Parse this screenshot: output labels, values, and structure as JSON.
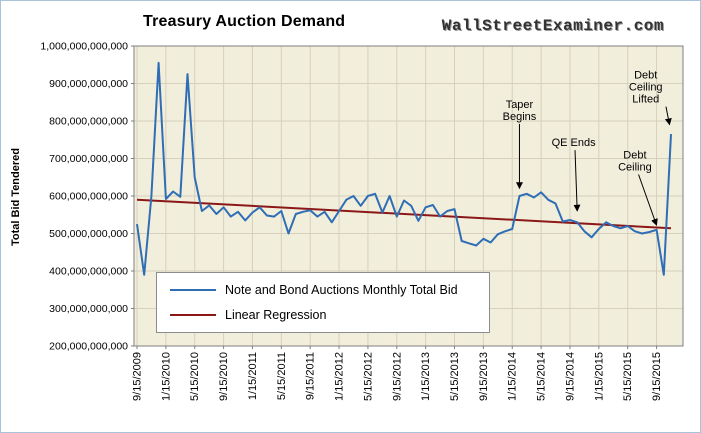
{
  "header": {
    "title": "Treasury Auction Demand",
    "watermark": "WallStreetExaminer.com"
  },
  "chart_data": {
    "type": "line",
    "title": "Treasury Auction Demand",
    "xlabel": "",
    "ylabel": "Total Bid Tendered",
    "grid": true,
    "legend_position": "lower-left",
    "plot_background": "#f2eedc",
    "grid_color": "#d6d0bc",
    "ylim_billions": [
      200,
      1000
    ],
    "y_tick_step_billions": 100,
    "y_tick_labels": [
      "200,000,000,000",
      "300,000,000,000",
      "400,000,000,000",
      "500,000,000,000",
      "600,000,000,000",
      "700,000,000,000",
      "800,000,000,000",
      "900,000,000,000",
      "1,000,000,000,000"
    ],
    "x_tick_labels": [
      "9/15/2009",
      "1/15/2010",
      "5/15/2010",
      "9/15/2010",
      "1/15/2011",
      "5/15/2011",
      "9/15/2011",
      "1/15/2012",
      "5/15/2012",
      "9/15/2012",
      "1/15/2013",
      "5/15/2013",
      "9/15/2013",
      "1/15/2014",
      "5/15/2014",
      "9/15/2014",
      "1/15/2015",
      "5/15/2015",
      "9/15/2015"
    ],
    "x_tick_every_n_points": 4,
    "series": [
      {
        "name": "Note and Bond Auctions Monthly Total Bid",
        "color": "#2f6eb5",
        "values_billions": [
          525,
          390,
          600,
          955,
          592,
          612,
          598,
          925,
          650,
          560,
          575,
          552,
          570,
          545,
          558,
          535,
          556,
          570,
          548,
          545,
          560,
          500,
          552,
          558,
          562,
          545,
          558,
          530,
          560,
          590,
          600,
          574,
          600,
          606,
          556,
          600,
          545,
          588,
          574,
          534,
          570,
          576,
          545,
          560,
          565,
          480,
          474,
          468,
          486,
          476,
          498,
          506,
          512,
          600,
          606,
          596,
          610,
          590,
          580,
          532,
          536,
          530,
          506,
          490,
          512,
          530,
          520,
          514,
          520,
          506,
          500,
          504,
          510,
          390,
          765
        ]
      },
      {
        "name": "Linear Regression",
        "color": "#8b1717",
        "start_billions": 590,
        "end_billions": 514
      }
    ],
    "annotations": [
      {
        "id": "taper-begins",
        "lines": [
          "Taper",
          "Begins"
        ],
        "text_index": 53,
        "text_value_billions": 835,
        "arrow_index": 53,
        "tip_index": 53,
        "tip_value_billions": 620
      },
      {
        "id": "qe-ends",
        "lines": [
          "QE Ends"
        ],
        "text_index": 60.5,
        "text_value_billions": 733,
        "arrow_index": 60.7,
        "tip_index": 61,
        "tip_value_billions": 560
      },
      {
        "id": "debt-ceiling",
        "lines": [
          "Debt",
          "Ceiling"
        ],
        "text_index": 69,
        "text_value_billions": 700,
        "arrow_index": 69.5,
        "tip_index": 72,
        "tip_value_billions": 522
      },
      {
        "id": "debt-ceiling-lifted",
        "lines": [
          "Debt",
          "Ceiling",
          "Lifted"
        ],
        "text_index": 70.5,
        "text_value_billions": 913,
        "arrow_index": 73.3,
        "tip_index": 73.8,
        "tip_value_billions": 790
      }
    ]
  }
}
